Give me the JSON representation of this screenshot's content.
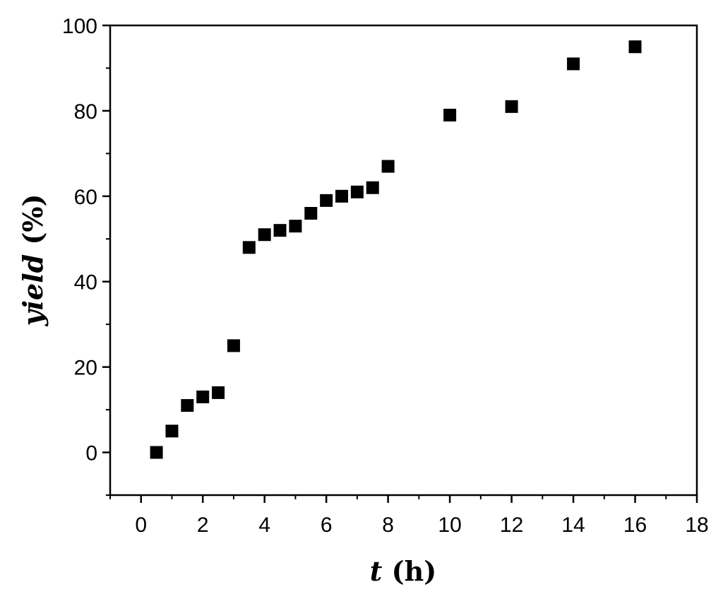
{
  "chart_data": {
    "type": "scatter",
    "title": "",
    "xlabel_var": "t",
    "xlabel_unit": " (h)",
    "ylabel_var": "yield",
    "ylabel_unit": " (%)",
    "xlim": [
      -1,
      18
    ],
    "ylim": [
      -10,
      100
    ],
    "x_ticks": [
      0,
      2,
      4,
      6,
      8,
      10,
      12,
      14,
      16,
      18
    ],
    "x_minor_ticks": [
      -1,
      1,
      3,
      5,
      7,
      9,
      11,
      13,
      15,
      17
    ],
    "y_ticks": [
      0,
      20,
      40,
      60,
      80,
      100
    ],
    "y_minor_ticks": [
      -10,
      10,
      30,
      50,
      70,
      90
    ],
    "grid": false,
    "legend": "none",
    "marker": "square",
    "marker_color": "#000000",
    "series": [
      {
        "x": [
          0.5,
          1,
          1.5,
          2,
          2.5,
          3,
          3.5,
          4,
          4.5,
          5,
          5.5,
          6,
          6.5,
          7,
          7.5,
          8,
          10,
          12,
          14,
          16
        ],
        "y": [
          0,
          5,
          11,
          13,
          14,
          25,
          48,
          51,
          52,
          53,
          56,
          59,
          60,
          61,
          62,
          67,
          79,
          81,
          91,
          95
        ]
      }
    ]
  }
}
